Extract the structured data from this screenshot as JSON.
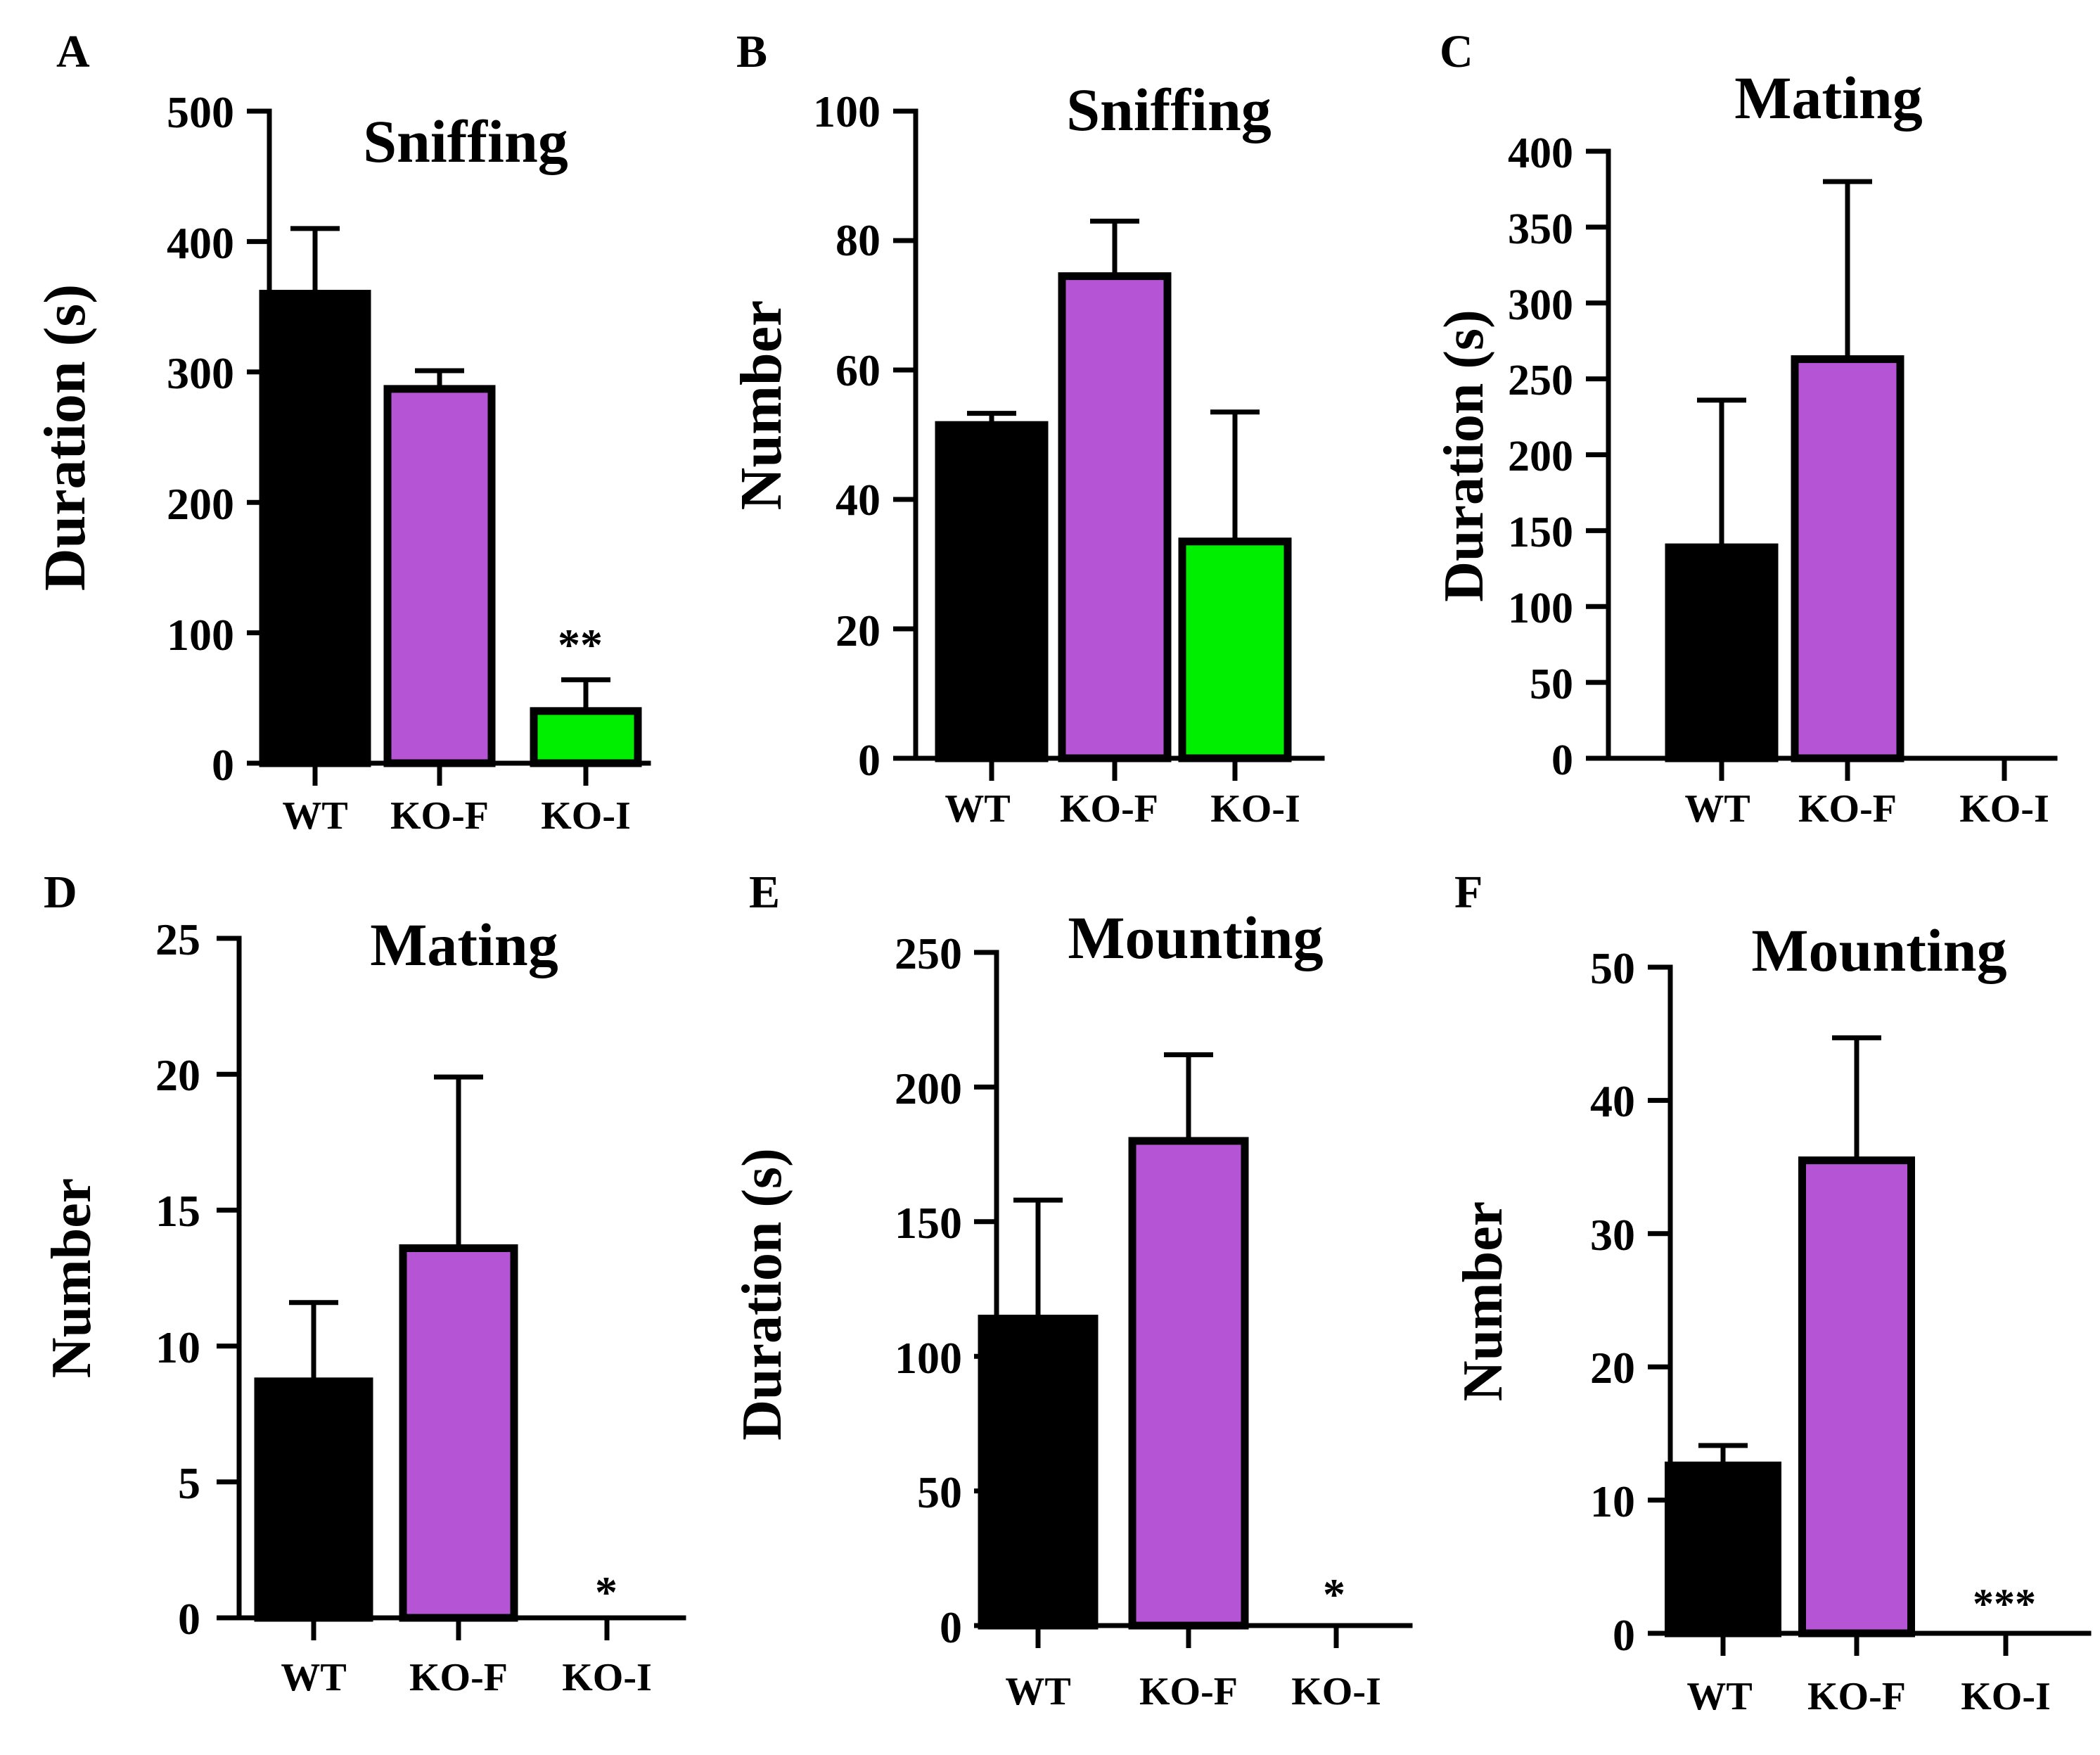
{
  "colors": {
    "WT": "#000000",
    "KO-F": "#b555d6",
    "KO-I": "#00ee00",
    "stroke": "#000000"
  },
  "chart_data": [
    {
      "panel": "A",
      "type": "bar",
      "title": "Sniffing",
      "xlabel": "",
      "ylabel": "Duration (s)",
      "ylim": [
        0,
        500
      ],
      "yticks": [
        "0",
        "100",
        "200",
        "300",
        "400",
        "500"
      ],
      "categories": [
        "WT",
        "KO-F",
        "KO-I"
      ],
      "values": [
        360,
        287,
        40
      ],
      "errors": [
        50,
        14,
        24
      ],
      "significance": [
        "",
        "",
        "**"
      ]
    },
    {
      "panel": "B",
      "type": "bar",
      "title": "Sniffing",
      "xlabel": "",
      "ylabel": "Number",
      "ylim": [
        0,
        100
      ],
      "yticks": [
        "0",
        "20",
        "40",
        "60",
        "80",
        "100"
      ],
      "categories": [
        "WT",
        "KO-F",
        "KO-I"
      ],
      "values": [
        51.5,
        74.5,
        33.5
      ],
      "errors": [
        1.8,
        8.5,
        20
      ],
      "significance": [
        "",
        "",
        ""
      ]
    },
    {
      "panel": "C",
      "type": "bar",
      "title": "Mating",
      "xlabel": "",
      "ylabel": "Duration (s)",
      "ylim": [
        0,
        400
      ],
      "yticks": [
        "0",
        "50",
        "100",
        "150",
        "200",
        "250",
        "300",
        "350",
        "400"
      ],
      "categories": [
        "WT",
        "KO-F",
        "KO-I"
      ],
      "values": [
        139,
        263,
        0
      ],
      "errors": [
        97,
        117,
        0
      ],
      "significance": [
        "",
        "",
        ""
      ]
    },
    {
      "panel": "D",
      "type": "bar",
      "title": "Mating",
      "xlabel": "",
      "ylabel": "Number",
      "ylim": [
        0,
        25
      ],
      "yticks": [
        "0",
        "5",
        "10",
        "15",
        "20",
        "25"
      ],
      "categories": [
        "WT",
        "KO-F",
        "KO-I"
      ],
      "values": [
        8.7,
        13.6,
        0
      ],
      "errors": [
        2.9,
        6.3,
        0
      ],
      "significance": [
        "",
        "",
        "*"
      ]
    },
    {
      "panel": "E",
      "type": "bar",
      "title": "Mounting",
      "xlabel": "",
      "ylabel": "Duration (s)",
      "ylim": [
        0,
        250
      ],
      "yticks": [
        "0",
        "50",
        "100",
        "150",
        "200",
        "250"
      ],
      "categories": [
        "WT",
        "KO-F",
        "KO-I"
      ],
      "values": [
        114,
        180,
        0
      ],
      "errors": [
        44,
        32,
        0
      ],
      "significance": [
        "",
        "",
        "*"
      ]
    },
    {
      "panel": "F",
      "type": "bar",
      "title": "Mounting",
      "xlabel": "",
      "ylabel": "Number",
      "ylim": [
        0,
        50
      ],
      "yticks": [
        "0",
        "10",
        "20",
        "30",
        "40",
        "50"
      ],
      "categories": [
        "WT",
        "KO-F",
        "KO-I"
      ],
      "values": [
        12.6,
        35.5,
        0
      ],
      "errors": [
        1.5,
        9.2,
        0
      ],
      "significance": [
        "",
        "",
        "***"
      ]
    }
  ]
}
